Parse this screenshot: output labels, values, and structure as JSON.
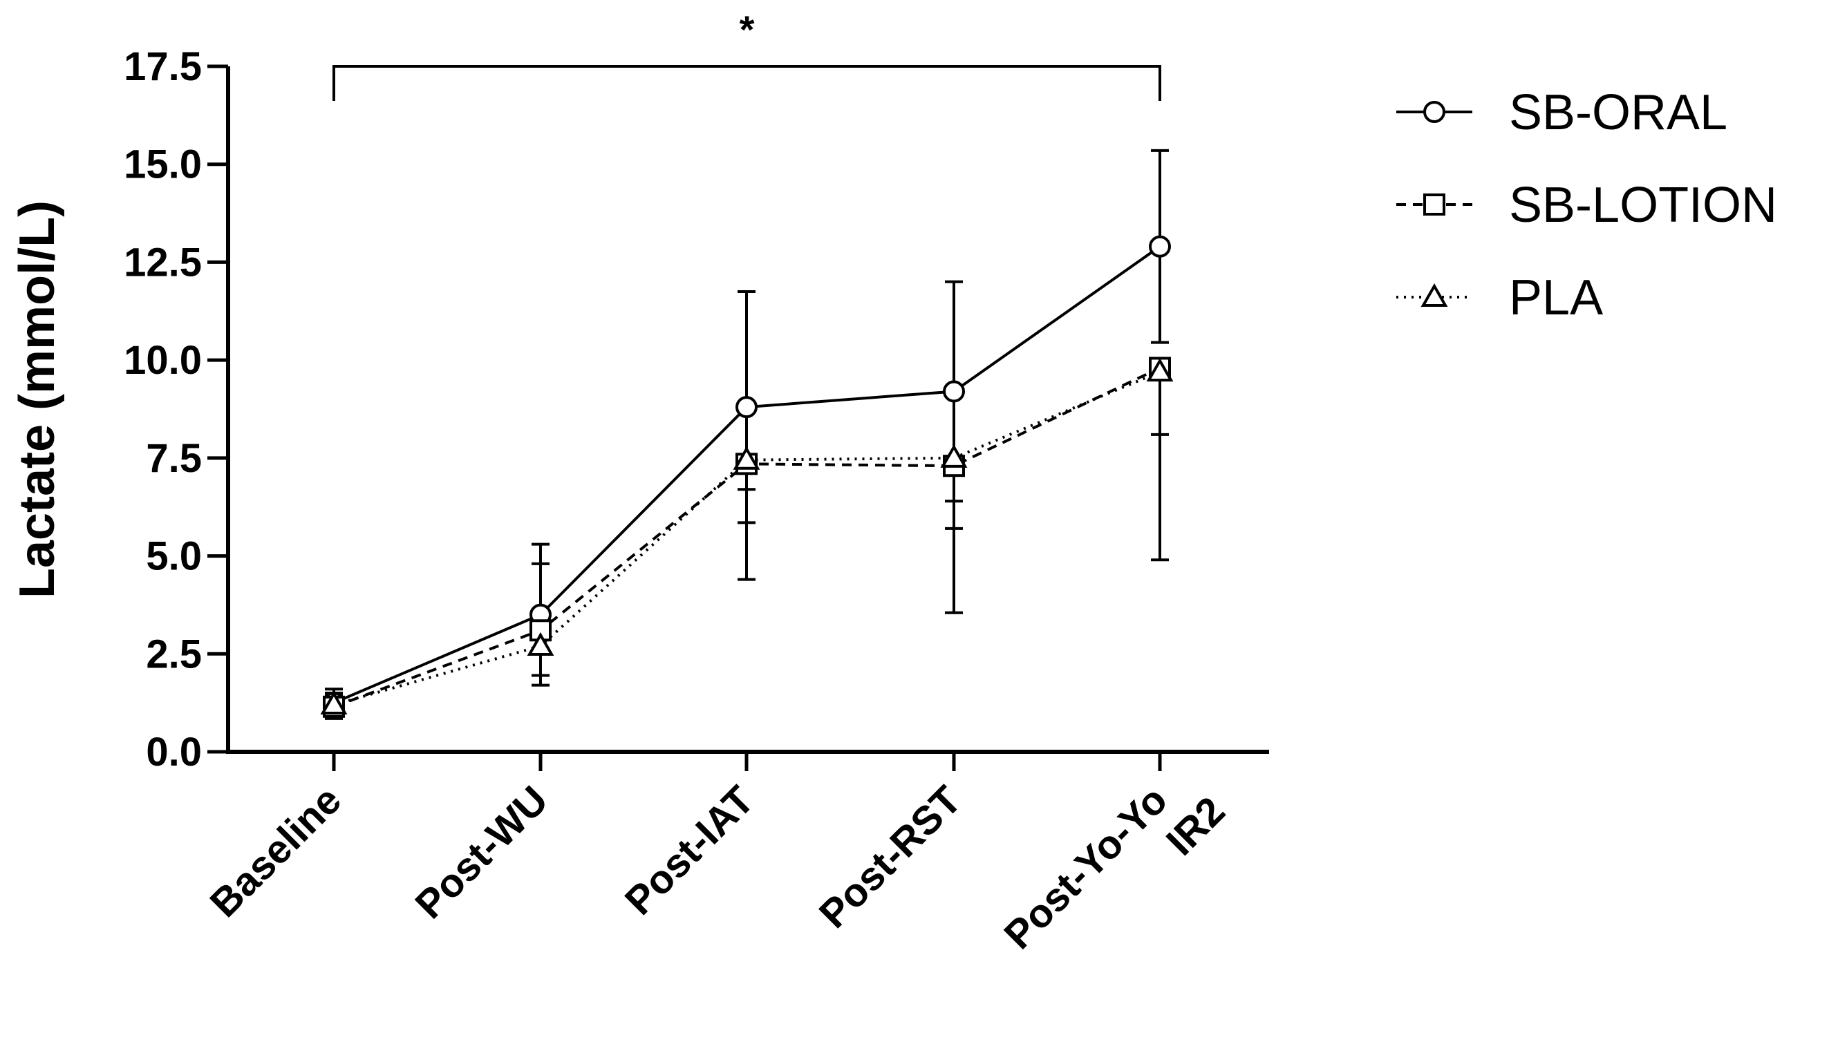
{
  "chart_data": {
    "type": "line",
    "title": "",
    "xlabel": "",
    "ylabel": "Lactate (mmol/L)",
    "ylim": [
      0,
      17.5
    ],
    "yticks": [
      0.0,
      2.5,
      5.0,
      7.5,
      10.0,
      12.5,
      15.0,
      17.5
    ],
    "ytick_labels": [
      "0.0",
      "2.5",
      "5.0",
      "7.5",
      "10.0",
      "12.5",
      "15.0",
      "17.5"
    ],
    "categories": [
      "Baseline",
      "Post-WU",
      "Post-IAT",
      "Post-RST",
      "Post-Yo-Yo IR2"
    ],
    "category_label_lines": [
      [
        "Baseline"
      ],
      [
        "Post-WU"
      ],
      [
        "Post-IAT"
      ],
      [
        "Post-RST"
      ],
      [
        "Post-Yo-Yo",
        "IR2"
      ]
    ],
    "series": [
      {
        "name": "SB-ORAL",
        "marker": "circle",
        "line_style": "solid",
        "values": [
          1.25,
          3.5,
          8.8,
          9.2,
          12.9
        ],
        "error_up": [
          0.35,
          1.8,
          2.95,
          2.8,
          2.45
        ],
        "error_down": [
          0.35,
          1.8,
          2.95,
          2.8,
          2.45
        ]
      },
      {
        "name": "SB-LOTION",
        "marker": "square",
        "line_style": "dashed",
        "values": [
          1.15,
          3.1,
          7.35,
          7.3,
          9.8
        ],
        "error_up": [
          0.3,
          1.7,
          0.0,
          0.0,
          0.0
        ],
        "error_down": [
          0.3,
          0.0,
          0.65,
          1.6,
          1.7
        ]
      },
      {
        "name": "PLA",
        "marker": "triangle",
        "line_style": "dotted",
        "values": [
          1.2,
          2.7,
          7.45,
          7.5,
          9.7
        ],
        "error_up": [
          0.3,
          0.0,
          0.0,
          0.0,
          0.0
        ],
        "error_down": [
          0.3,
          0.75,
          3.05,
          3.95,
          4.8
        ]
      }
    ],
    "annotations": [
      {
        "type": "significance_bracket",
        "from": "Baseline",
        "to": "Post-Yo-Yo IR2",
        "label": "*"
      }
    ],
    "legend": {
      "position": "right",
      "entries": [
        "SB-ORAL",
        "SB-LOTION",
        "PLA"
      ]
    },
    "grid": false
  }
}
